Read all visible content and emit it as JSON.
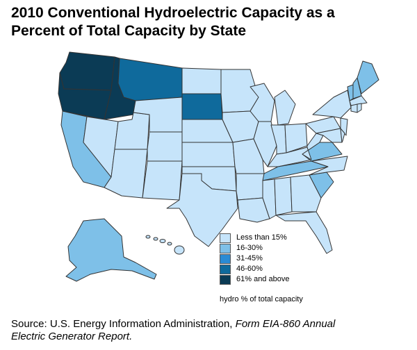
{
  "title_line1": "2010 Conventional Hydroelectric Capacity as a",
  "title_line2": "Percent of Total Capacity by State",
  "legend": {
    "items": [
      {
        "label": "Less than 15%",
        "color": "#c6e4fa"
      },
      {
        "label": "16-30%",
        "color": "#7ec0e8"
      },
      {
        "label": "31-45%",
        "color": "#2a8bd4"
      },
      {
        "label": "46-60%",
        "color": "#0f6a9c"
      },
      {
        "label": "61% and above",
        "color": "#0b3b55"
      }
    ],
    "note": "hydro % of total capacity"
  },
  "source": {
    "prefix": "Source: U.S. Energy Information Administration, ",
    "italic": "Form EIA-860 Annual",
    "line2_italic": "Electric Generator Report."
  },
  "categories": {
    "WA": 4,
    "OR": 4,
    "ID": 4,
    "MT": 3,
    "SD": 3,
    "CA": 1,
    "AK": 1,
    "VA": 1,
    "TN": 1,
    "SC": 1,
    "VT": 1,
    "ME": 1,
    "NH": 1,
    "NV": 0,
    "UT": 0,
    "AZ": 0,
    "WY": 0,
    "CO": 0,
    "NM": 0,
    "ND": 0,
    "NE": 0,
    "KS": 0,
    "OK": 0,
    "TX": 0,
    "MN": 0,
    "IA": 0,
    "MO": 0,
    "AR": 0,
    "LA": 0,
    "WI": 0,
    "IL": 0,
    "MI": 0,
    "IN": 0,
    "OH": 0,
    "KY": 0,
    "MS": 0,
    "AL": 0,
    "GA": 0,
    "FL": 0,
    "NC": 0,
    "WV": 0,
    "PA": 0,
    "NY": 0,
    "NJ": 0,
    "MD": 0,
    "DE": 0,
    "MA": 0,
    "CT": 0,
    "RI": 0,
    "HI": 0
  }
}
